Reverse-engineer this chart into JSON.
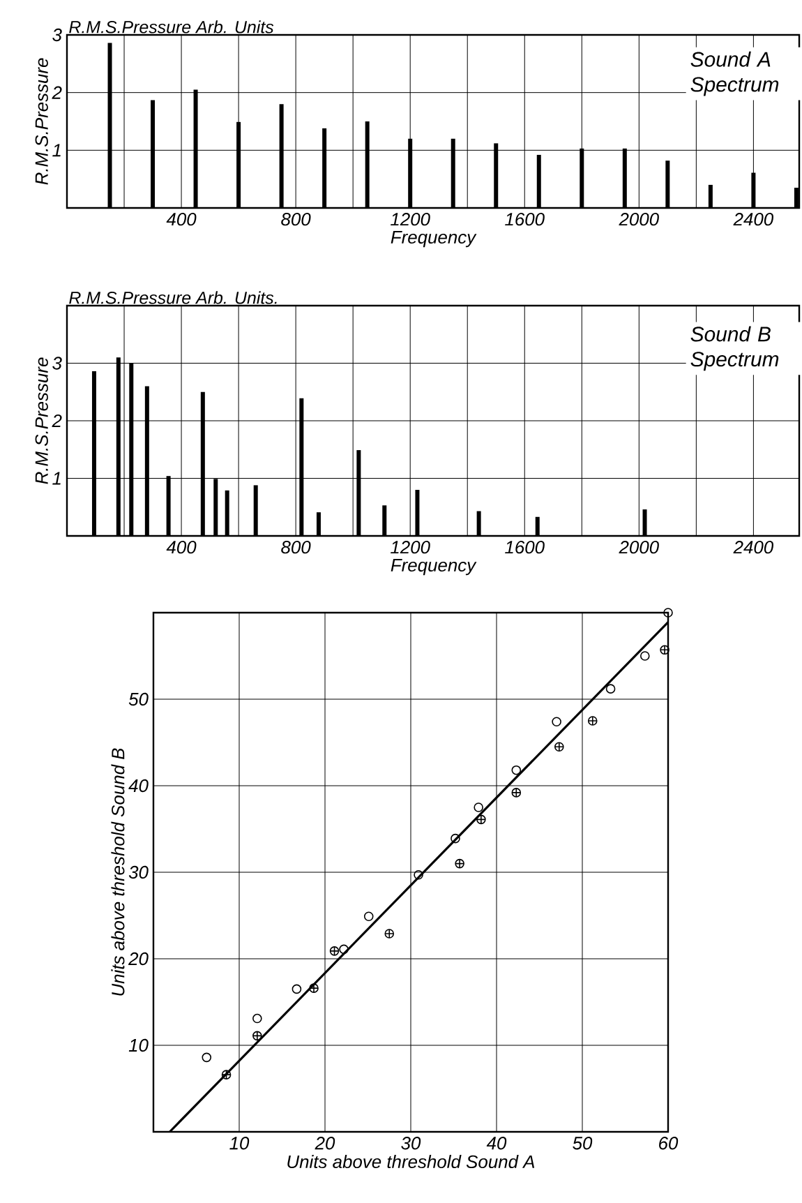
{
  "chart_data": [
    {
      "type": "bar",
      "title": "Sound A Spectrum",
      "annotations": [
        "R.M.S.Pressure Arb. Units"
      ],
      "xlabel": "Frequency",
      "ylabel": "R.M.S.Pressure",
      "color": "#000000",
      "x": [
        150,
        300,
        450,
        600,
        750,
        900,
        1050,
        1200,
        1350,
        1500,
        1650,
        1800,
        1950,
        2100,
        2250,
        2400,
        2550
      ],
      "values": [
        2.86,
        1.87,
        2.05,
        1.49,
        1.8,
        1.38,
        1.5,
        1.2,
        1.2,
        1.12,
        0.92,
        1.03,
        1.03,
        0.82,
        0.4,
        0.61,
        0.35
      ],
      "xlim": [
        0,
        2560
      ],
      "ylim": [
        0,
        3
      ],
      "yticks": [
        1,
        2,
        3
      ],
      "xticks": [
        {
          "value": 200,
          "label": null
        },
        400,
        {
          "value": 600,
          "label": null
        },
        800,
        {
          "value": 1000,
          "label": null
        },
        1200,
        {
          "value": 1400,
          "label": null
        },
        1600,
        {
          "value": 1800,
          "label": null
        },
        2000,
        {
          "value": 2200,
          "label": null
        },
        2400
      ],
      "grid": true
    },
    {
      "type": "bar",
      "title": "Sound B Spectrum",
      "annotations": [
        "R.M.S.Pressure Arb. Units."
      ],
      "xlabel": "Frequency",
      "ylabel": "R.M.S.Pressure",
      "color": "#000000",
      "x": [
        95,
        180,
        225,
        280,
        355,
        475,
        520,
        560,
        660,
        820,
        880,
        1020,
        1110,
        1225,
        1440,
        1645,
        2020
      ],
      "values": [
        2.86,
        3.1,
        3.0,
        2.6,
        1.04,
        2.5,
        0.99,
        0.79,
        0.88,
        2.39,
        0.41,
        1.49,
        0.53,
        0.8,
        0.43,
        0.33,
        0.46
      ],
      "xlim": [
        0,
        2560
      ],
      "ylim": [
        0,
        4
      ],
      "yticks": [
        1,
        2,
        3
      ],
      "xticks": [
        {
          "value": 200,
          "label": null
        },
        400,
        {
          "value": 600,
          "label": null
        },
        800,
        {
          "value": 1000,
          "label": null
        },
        1200,
        {
          "value": 1400,
          "label": null
        },
        1600,
        {
          "value": 1800,
          "label": null
        },
        2000,
        {
          "value": 2200,
          "label": null
        },
        2400
      ],
      "grid": true
    },
    {
      "type": "scatter",
      "xlabel": "Units above threshold Sound A",
      "ylabel": "Units above threshold Sound B",
      "xlim": [
        0,
        60
      ],
      "ylim": [
        0,
        60
      ],
      "xticks": [
        10,
        20,
        30,
        40,
        50,
        60
      ],
      "yticks": [
        10,
        20,
        30,
        40,
        50
      ],
      "grid": true,
      "series": [
        {
          "type": "scatter",
          "marker": "circle",
          "color": "#000000",
          "x": [
            6.2,
            12.1,
            16.7,
            22.2,
            25.1,
            30.9,
            35.2,
            37.9,
            42.3,
            47.0,
            53.3,
            57.3,
            60.0
          ],
          "values": [
            8.6,
            13.1,
            16.5,
            21.1,
            24.9,
            29.7,
            33.9,
            37.5,
            41.8,
            47.4,
            51.2,
            55.0,
            60.0
          ]
        },
        {
          "type": "scatter",
          "marker": "cross",
          "color": "#000000",
          "x": [
            8.5,
            12.1,
            18.7,
            21.1,
            27.5,
            35.7,
            38.2,
            42.3,
            47.3,
            51.2,
            59.6
          ],
          "values": [
            6.6,
            11.1,
            16.6,
            20.9,
            22.9,
            31.0,
            36.1,
            39.2,
            44.5,
            47.5,
            55.7
          ]
        },
        {
          "type": "line",
          "marker": "none",
          "color": "#000000",
          "x": [
            1.9,
            60
          ],
          "values": [
            0,
            58.9
          ]
        }
      ]
    }
  ]
}
